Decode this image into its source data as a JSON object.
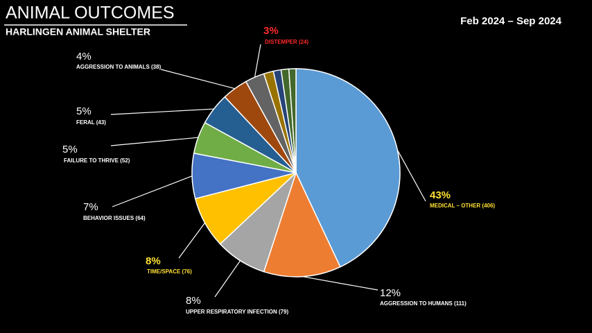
{
  "chart_data": {
    "type": "pie",
    "title": "ANIMAL OUTCOMES",
    "subtitle": "HARLINGEN ANIMAL SHELTER",
    "date_range": "Feb 2024 – Sep 2024",
    "categories": [
      "MEDICAL – OTHER (406)",
      "AGGRESSION TO HUMANS (111)",
      "UPPER RESPIRATORY INFECTION (79)",
      "TIME/SPACE (76)",
      "BEHAVIOR ISSUES (64)",
      "FAILURE TO THRIVE (52)",
      "FERAL (43)",
      "AGGRESSION TO ANIMALS (38)",
      "DISTEMPER (24)",
      null,
      null,
      null,
      null
    ],
    "values": [
      43,
      12,
      8,
      8,
      7,
      5,
      5,
      4,
      3,
      1.5,
      1.2,
      1.2,
      1.1
    ],
    "value_labels": [
      "43%",
      "12%",
      "8%",
      "8%",
      "7%",
      "5%",
      "5%",
      "4%",
      "3%",
      null,
      null,
      null,
      null
    ],
    "colors": [
      "#5b9bd5",
      "#ed7d31",
      "#a5a5a5",
      "#ffc000",
      "#4472c4",
      "#70ad47",
      "#255e91",
      "#9e480e",
      "#636363",
      "#997300",
      "#264478",
      "#43682b",
      "#43682b"
    ],
    "label_colors": [
      "#ffe033",
      "#ffffff",
      "#ffffff",
      "#ffe033",
      "#ffffff",
      "#ffffff",
      "#ffffff",
      "#ffffff",
      "#ff2a2a",
      null,
      null,
      null,
      null
    ]
  }
}
